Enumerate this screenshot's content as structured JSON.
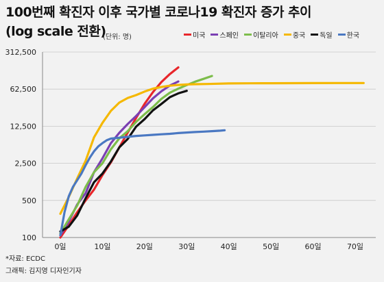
{
  "header": {
    "title_line1": "100번째 확진자 이후 국가별 코로나19 확진자 증가 추이",
    "title_line2": "(log scale 전환)",
    "unit": "(단위: 명)"
  },
  "footer": {
    "source": "*자료: ECDC",
    "credit": "그래픽: 김지영 디자인기자"
  },
  "chart_data": {
    "type": "line",
    "title": "100번째 확진자 이후 국가별 코로나19 확진자 증가 추이 (log scale 전환)",
    "unit": "(단위: 명)",
    "y_scale": "log",
    "ylim": [
      100,
      312500
    ],
    "y_ticks": [
      100,
      500,
      2500,
      12500,
      62500,
      312500
    ],
    "y_tick_labels": [
      "100",
      "500",
      "2,500",
      "12,500",
      "62,500",
      "312,500"
    ],
    "x_ticks": [
      0,
      10,
      20,
      30,
      40,
      50,
      60,
      70
    ],
    "x_tick_labels": [
      "0일",
      "10일",
      "20일",
      "30일",
      "40일",
      "50일",
      "60일",
      "70일"
    ],
    "grid": true,
    "legend_position": "top-right",
    "series": [
      {
        "name": "미국",
        "color": "#e8262b",
        "points": [
          [
            0,
            100
          ],
          [
            2,
            170
          ],
          [
            4,
            300
          ],
          [
            6,
            500
          ],
          [
            8,
            800
          ],
          [
            10,
            1500
          ],
          [
            12,
            2600
          ],
          [
            14,
            5000
          ],
          [
            16,
            9500
          ],
          [
            18,
            18000
          ],
          [
            20,
            33000
          ],
          [
            22,
            55000
          ],
          [
            24,
            85000
          ],
          [
            26,
            120000
          ],
          [
            28,
            160000
          ]
        ]
      },
      {
        "name": "스페인",
        "color": "#7b3fb3",
        "points": [
          [
            0,
            110
          ],
          [
            2,
            200
          ],
          [
            4,
            420
          ],
          [
            6,
            680
          ],
          [
            8,
            1700
          ],
          [
            10,
            3100
          ],
          [
            12,
            6000
          ],
          [
            14,
            9400
          ],
          [
            16,
            13800
          ],
          [
            18,
            19500
          ],
          [
            20,
            28600
          ],
          [
            22,
            42000
          ],
          [
            24,
            57000
          ],
          [
            26,
            73000
          ],
          [
            28,
            87000
          ]
        ]
      },
      {
        "name": "이탈리아",
        "color": "#7dbd4b",
        "points": [
          [
            0,
            120
          ],
          [
            2,
            220
          ],
          [
            4,
            400
          ],
          [
            6,
            900
          ],
          [
            8,
            1700
          ],
          [
            10,
            2500
          ],
          [
            12,
            4600
          ],
          [
            14,
            7400
          ],
          [
            16,
            10100
          ],
          [
            18,
            15100
          ],
          [
            20,
            21100
          ],
          [
            22,
            28700
          ],
          [
            24,
            41000
          ],
          [
            26,
            53600
          ],
          [
            28,
            63900
          ],
          [
            30,
            74400
          ],
          [
            32,
            86500
          ],
          [
            34,
            97700
          ],
          [
            36,
            110500
          ]
        ]
      },
      {
        "name": "중국",
        "color": "#f5b800",
        "points": [
          [
            0,
            280
          ],
          [
            2,
            580
          ],
          [
            4,
            1300
          ],
          [
            6,
            2800
          ],
          [
            8,
            7700
          ],
          [
            10,
            14400
          ],
          [
            12,
            24300
          ],
          [
            14,
            34800
          ],
          [
            16,
            42600
          ],
          [
            18,
            48300
          ],
          [
            20,
            56200
          ],
          [
            22,
            63800
          ],
          [
            24,
            68500
          ],
          [
            26,
            72400
          ],
          [
            28,
            75000
          ],
          [
            30,
            76400
          ],
          [
            32,
            77300
          ],
          [
            35,
            78200
          ],
          [
            40,
            79900
          ],
          [
            45,
            80400
          ],
          [
            50,
            80700
          ],
          [
            55,
            80900
          ],
          [
            60,
            81100
          ],
          [
            65,
            81300
          ],
          [
            72,
            81500
          ]
        ]
      },
      {
        "name": "독일",
        "color": "#111111",
        "points": [
          [
            0,
            130
          ],
          [
            2,
            160
          ],
          [
            4,
            260
          ],
          [
            6,
            550
          ],
          [
            8,
            1100
          ],
          [
            10,
            1600
          ],
          [
            12,
            2700
          ],
          [
            14,
            5000
          ],
          [
            16,
            7200
          ],
          [
            18,
            12300
          ],
          [
            20,
            17000
          ],
          [
            22,
            24900
          ],
          [
            24,
            32900
          ],
          [
            26,
            44000
          ],
          [
            28,
            52000
          ],
          [
            30,
            58000
          ]
        ]
      },
      {
        "name": "한국",
        "color": "#4a78c2",
        "points": [
          [
            0,
            110
          ],
          [
            1,
            300
          ],
          [
            2,
            600
          ],
          [
            3,
            900
          ],
          [
            4,
            1200
          ],
          [
            5,
            1600
          ],
          [
            6,
            2300
          ],
          [
            7,
            3200
          ],
          [
            8,
            4200
          ],
          [
            9,
            5200
          ],
          [
            10,
            6000
          ],
          [
            11,
            6800
          ],
          [
            12,
            7300
          ],
          [
            14,
            7600
          ],
          [
            16,
            7900
          ],
          [
            18,
            8200
          ],
          [
            20,
            8400
          ],
          [
            22,
            8600
          ],
          [
            24,
            8800
          ],
          [
            26,
            9000
          ],
          [
            28,
            9300
          ],
          [
            30,
            9500
          ],
          [
            32,
            9700
          ],
          [
            34,
            9900
          ],
          [
            36,
            10100
          ],
          [
            38,
            10300
          ],
          [
            39,
            10500
          ]
        ]
      }
    ]
  }
}
